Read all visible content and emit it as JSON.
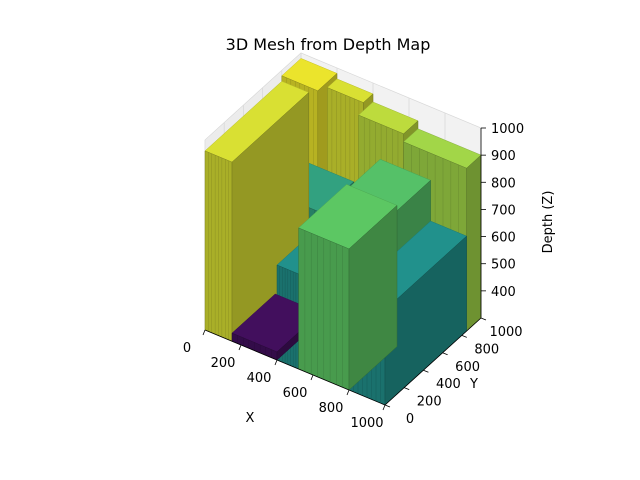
{
  "chart_data": {
    "type": "surface",
    "title": "3D Mesh from Depth Map",
    "xlabel": "X",
    "ylabel": "Y",
    "zlabel": "Depth (Z)",
    "xlim": [
      0,
      1000
    ],
    "ylim": [
      0,
      1000
    ],
    "zlim": [
      300,
      1000
    ],
    "x_ticks": [
      0,
      200,
      400,
      600,
      800,
      1000
    ],
    "y_ticks": [
      0,
      200,
      400,
      600,
      800,
      1000
    ],
    "z_ticks": [
      400,
      500,
      600,
      700,
      800,
      900,
      1000
    ],
    "colormap": "viridis",
    "grid": true,
    "surface_regions": [
      {
        "x": [
          0,
          200
        ],
        "y": [
          800,
          1000
        ],
        "z": 980
      },
      {
        "x": [
          200,
          400
        ],
        "y": [
          900,
          1000
        ],
        "z": 960
      },
      {
        "x": [
          400,
          650
        ],
        "y": [
          850,
          1000
        ],
        "z": 930
      },
      {
        "x": [
          650,
          1000
        ],
        "y": [
          850,
          1000
        ],
        "z": 900
      },
      {
        "x": [
          0,
          150
        ],
        "y": [
          0,
          800
        ],
        "z": 960
      },
      {
        "x": [
          150,
          400
        ],
        "y": [
          450,
          800
        ],
        "z": 700
      },
      {
        "x": [
          150,
          400
        ],
        "y": [
          0,
          450
        ],
        "z": 330
      },
      {
        "x": [
          400,
          520
        ],
        "y": [
          0,
          800
        ],
        "z": 650
      },
      {
        "x": [
          520,
          800
        ],
        "y": [
          500,
          850
        ],
        "z": 800
      },
      {
        "x": [
          520,
          800
        ],
        "y": [
          0,
          500
        ],
        "z": 820
      },
      {
        "x": [
          800,
          1000
        ],
        "y": [
          0,
          850
        ],
        "z": 650
      }
    ]
  }
}
